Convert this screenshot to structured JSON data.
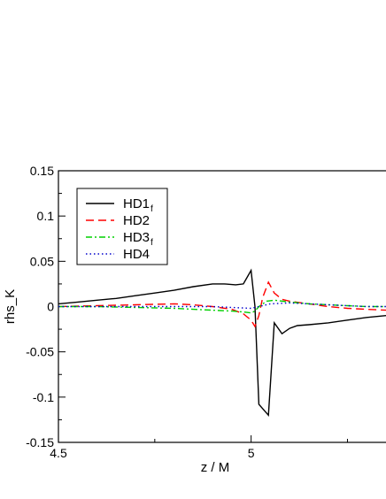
{
  "chart_data": {
    "type": "line",
    "xlabel": "z / M",
    "ylabel": "rhs_K",
    "xlim": [
      4.5,
      5.35
    ],
    "ylim": [
      -0.15,
      0.15
    ],
    "x_ticks": [
      "4.5",
      "5"
    ],
    "x_tick_values": [
      4.5,
      5.0
    ],
    "y_ticks": [
      "0.15",
      "0.1",
      "0.05",
      "0",
      "-0.05",
      "-0.1",
      "-0.15"
    ],
    "y_tick_values": [
      0.15,
      0.1,
      0.05,
      0,
      -0.05,
      -0.1,
      -0.15
    ],
    "legend_position": "top-left",
    "series": [
      {
        "name": "HD1",
        "subscript": "f",
        "color": "#000000",
        "dash": "",
        "x": [
          4.5,
          4.55,
          4.6,
          4.65,
          4.7,
          4.75,
          4.8,
          4.85,
          4.9,
          4.93,
          4.96,
          4.98,
          5.0,
          5.01,
          5.02,
          5.045,
          5.06,
          5.08,
          5.1,
          5.12,
          5.15,
          5.2,
          5.25,
          5.3,
          5.35
        ],
        "y": [
          0.003,
          0.005,
          0.007,
          0.009,
          0.012,
          0.015,
          0.018,
          0.022,
          0.025,
          0.025,
          0.024,
          0.025,
          0.04,
          0.0,
          -0.108,
          -0.12,
          -0.018,
          -0.03,
          -0.024,
          -0.021,
          -0.02,
          -0.018,
          -0.015,
          -0.012,
          -0.01
        ]
      },
      {
        "name": "HD2",
        "subscript": "",
        "color": "#ff0000",
        "dash": "9,5",
        "x": [
          4.5,
          4.6,
          4.7,
          4.8,
          4.85,
          4.9,
          4.95,
          4.98,
          5.0,
          5.01,
          5.02,
          5.03,
          5.045,
          5.06,
          5.08,
          5.1,
          5.15,
          5.2,
          5.25,
          5.3,
          5.35
        ],
        "y": [
          0.0,
          0.001,
          0.002,
          0.003,
          0.002,
          0.0,
          -0.003,
          -0.008,
          -0.015,
          -0.022,
          -0.01,
          0.01,
          0.027,
          0.015,
          0.008,
          0.006,
          0.003,
          0.0,
          -0.002,
          -0.003,
          -0.004
        ]
      },
      {
        "name": "HD3",
        "subscript": "f",
        "color": "#00d000",
        "dash": "7,3,2,3",
        "x": [
          4.5,
          4.6,
          4.7,
          4.8,
          4.9,
          4.95,
          4.98,
          5.0,
          5.01,
          5.02,
          5.04,
          5.06,
          5.1,
          5.15,
          5.2,
          5.25,
          5.3,
          5.35
        ],
        "y": [
          0.0,
          0.0,
          -0.001,
          -0.002,
          -0.004,
          -0.005,
          -0.006,
          -0.007,
          -0.005,
          0.0,
          0.006,
          0.007,
          0.005,
          0.003,
          0.002,
          0.001,
          0.0,
          0.0
        ]
      },
      {
        "name": "HD4",
        "subscript": "",
        "color": "#0000cc",
        "dash": "1.5,3",
        "x": [
          4.5,
          4.6,
          4.7,
          4.8,
          4.9,
          4.95,
          5.0,
          5.02,
          5.05,
          5.1,
          5.15,
          5.2,
          5.25,
          5.3,
          5.35
        ],
        "y": [
          0.0,
          0.0,
          0.0,
          0.0,
          0.0,
          -0.001,
          -0.002,
          0.0,
          0.003,
          0.004,
          0.003,
          0.002,
          0.001,
          0.0,
          0.0
        ]
      }
    ]
  }
}
